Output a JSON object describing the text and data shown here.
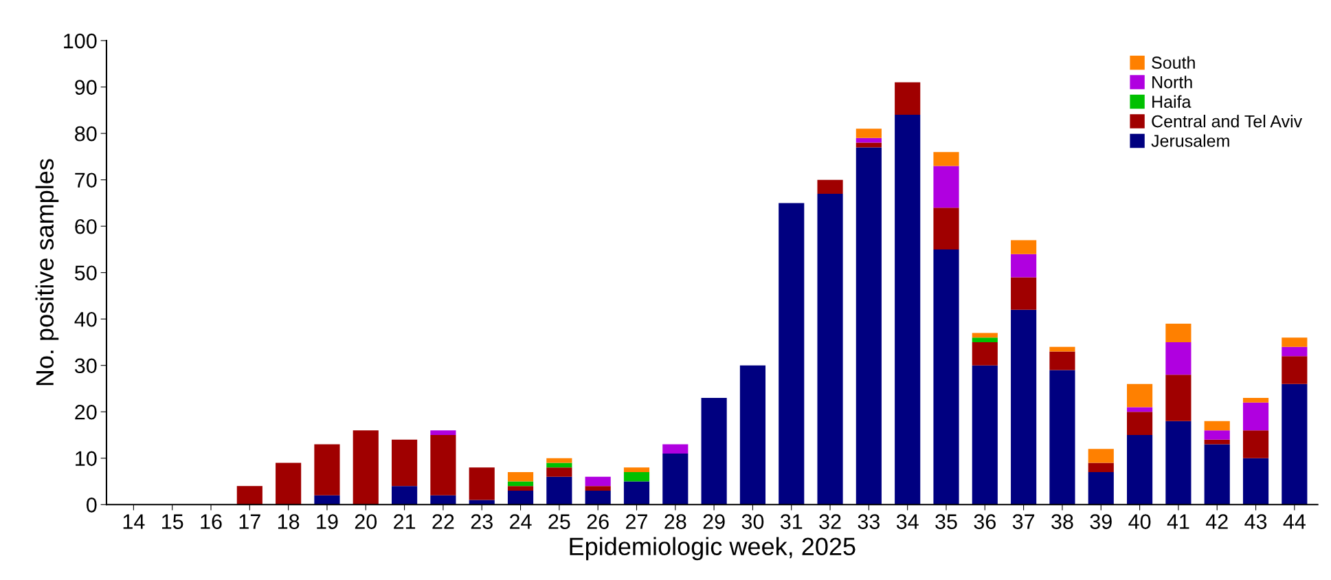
{
  "chart_data": {
    "type": "bar",
    "stacked": true,
    "xlabel": "Epidemiologic week, 2025",
    "ylabel": "No. positive samples",
    "categories": [
      "14",
      "15",
      "16",
      "17",
      "18",
      "19",
      "20",
      "21",
      "22",
      "23",
      "24",
      "25",
      "26",
      "27",
      "28",
      "29",
      "30",
      "31",
      "32",
      "33",
      "34",
      "35",
      "36",
      "37",
      "38",
      "39",
      "40",
      "41",
      "42",
      "43",
      "44"
    ],
    "series": [
      {
        "name": "Jerusalem",
        "color": "#000080",
        "values": [
          0,
          0,
          0,
          0,
          0,
          2,
          0,
          4,
          2,
          1,
          3,
          6,
          3,
          5,
          11,
          23,
          30,
          65,
          67,
          77,
          84,
          55,
          30,
          42,
          29,
          7,
          15,
          18,
          13,
          10,
          26
        ]
      },
      {
        "name": "Central and Tel Aviv",
        "color": "#a00000",
        "values": [
          0,
          0,
          0,
          4,
          9,
          11,
          16,
          10,
          13,
          7,
          1,
          2,
          1,
          0,
          0,
          0,
          0,
          0,
          3,
          1,
          7,
          9,
          5,
          7,
          4,
          2,
          5,
          10,
          1,
          6,
          6
        ]
      },
      {
        "name": "Haifa",
        "color": "#00c000",
        "values": [
          0,
          0,
          0,
          0,
          0,
          0,
          0,
          0,
          0,
          0,
          1,
          1,
          0,
          2,
          0,
          0,
          0,
          0,
          0,
          0,
          0,
          0,
          1,
          0,
          0,
          0,
          0,
          0,
          0,
          0,
          0
        ]
      },
      {
        "name": "North",
        "color": "#b000e0",
        "values": [
          0,
          0,
          0,
          0,
          0,
          0,
          0,
          0,
          1,
          0,
          0,
          0,
          2,
          0,
          2,
          0,
          0,
          0,
          0,
          1,
          0,
          9,
          0,
          5,
          0,
          0,
          1,
          7,
          2,
          6,
          2
        ]
      },
      {
        "name": "South",
        "color": "#ff8000",
        "values": [
          0,
          0,
          0,
          0,
          0,
          0,
          0,
          0,
          0,
          0,
          2,
          1,
          0,
          1,
          0,
          0,
          0,
          0,
          0,
          2,
          0,
          3,
          1,
          3,
          1,
          3,
          5,
          4,
          2,
          1,
          2
        ]
      }
    ],
    "ylim": [
      0,
      100
    ],
    "yticks": [
      0,
      10,
      20,
      30,
      40,
      50,
      60,
      70,
      80,
      90,
      100
    ],
    "grid": false,
    "legend": "top right"
  }
}
